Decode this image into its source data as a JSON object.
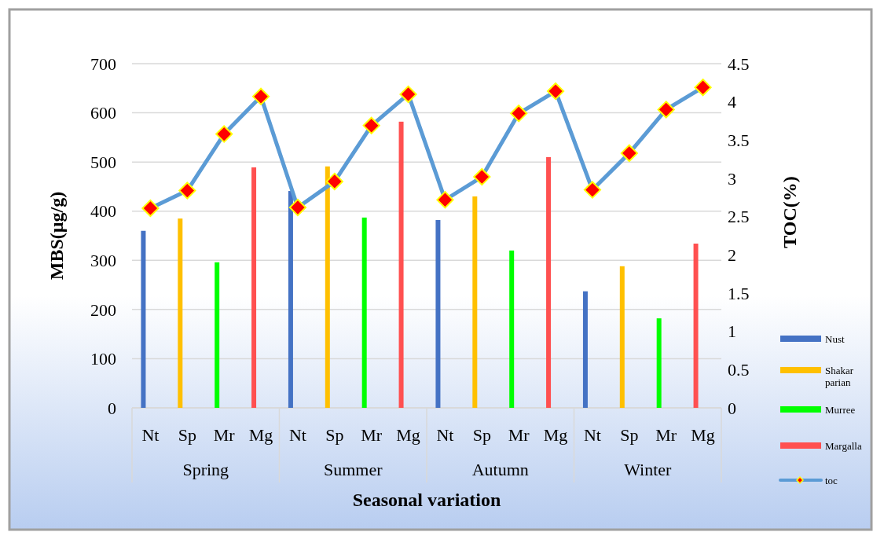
{
  "chart_data": {
    "type": "bar",
    "xlabel": "Seasonal variation",
    "ylabel": "MBS(µg/g)",
    "y2label": "TOC(%)",
    "categories": [
      "Nt",
      "Sp",
      "Mr",
      "Mg",
      "Nt",
      "Sp",
      "Mr",
      "Mg",
      "Nt",
      "Sp",
      "Mr",
      "Mg",
      "Nt",
      "Sp",
      "Mr",
      "Mg"
    ],
    "annotations": [
      "Spring",
      "Summer",
      "Autumn",
      "Winter"
    ],
    "ylim": [
      0,
      700
    ],
    "yticks": [
      0,
      100,
      200,
      300,
      400,
      500,
      600,
      700
    ],
    "y2lim": [
      0,
      4.5
    ],
    "y2ticks": [
      {
        "value": 0,
        "label": "0"
      },
      {
        "value": 0.5,
        "label": "0.5"
      },
      {
        "value": 1,
        "label": "1"
      },
      {
        "value": 1.5,
        "label": "1.5"
      },
      {
        "value": 2,
        "label": "2"
      },
      {
        "value": 2.5,
        "label": "2.5"
      },
      {
        "value": 3,
        "label": "3"
      },
      {
        "value": 3.5,
        "label": "3.5"
      },
      {
        "value": 4,
        "label": "4"
      },
      {
        "value": 4.5,
        "label": "4.5"
      }
    ],
    "grid": "y",
    "legend": "right",
    "series": [
      {
        "name": "Nust",
        "color": "#4472c4",
        "values": [
          360,
          null,
          null,
          null,
          441,
          null,
          null,
          null,
          382,
          null,
          null,
          null,
          237,
          null,
          null,
          null
        ]
      },
      {
        "name": "Shakar parian",
        "color": "#ffc000",
        "values": [
          null,
          385,
          null,
          null,
          null,
          491,
          null,
          null,
          null,
          430,
          null,
          null,
          null,
          288,
          null,
          null
        ]
      },
      {
        "name": "Murree",
        "color": "#00ff00",
        "values": [
          null,
          null,
          296,
          null,
          null,
          null,
          387,
          null,
          null,
          null,
          320,
          null,
          null,
          null,
          182,
          null
        ]
      },
      {
        "name": "Margalla",
        "color": "#ff5050",
        "values": [
          null,
          null,
          null,
          489,
          null,
          null,
          null,
          582,
          null,
          null,
          null,
          510,
          null,
          null,
          null,
          334
        ]
      },
      {
        "name": "toc",
        "type": "line",
        "axis": "y2",
        "marker": "diamond",
        "color": "#5b9bd5",
        "values": [
          2.61,
          2.84,
          3.58,
          4.07,
          2.62,
          2.96,
          3.69,
          4.1,
          2.72,
          3.02,
          3.85,
          4.14,
          2.85,
          3.33,
          3.9,
          4.19
        ]
      }
    ]
  }
}
